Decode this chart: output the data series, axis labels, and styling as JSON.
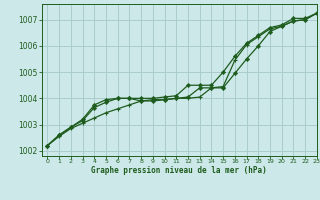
{
  "title": "Graphe pression niveau de la mer (hPa)",
  "bg_color": "#cce8e8",
  "grid_color": "#aacccc",
  "line_color": "#1e5c1e",
  "xlim": [
    -0.5,
    23
  ],
  "ylim": [
    1001.8,
    1007.6
  ],
  "yticks": [
    1002,
    1003,
    1004,
    1005,
    1006,
    1007
  ],
  "xticks": [
    0,
    1,
    2,
    3,
    4,
    5,
    6,
    7,
    8,
    9,
    10,
    11,
    12,
    13,
    14,
    15,
    16,
    17,
    18,
    19,
    20,
    21,
    22,
    23
  ],
  "line1_x": [
    0,
    1,
    2,
    3,
    4,
    5,
    6,
    7,
    8,
    9,
    10,
    11,
    12,
    13,
    14,
    15,
    16,
    17,
    18,
    19,
    20,
    21,
    22,
    23
  ],
  "line1_y": [
    1002.2,
    1002.6,
    1002.9,
    1003.15,
    1003.65,
    1003.85,
    1004.0,
    1004.0,
    1004.0,
    1004.0,
    1004.05,
    1004.1,
    1004.5,
    1004.5,
    1004.5,
    1005.0,
    1005.6,
    1006.1,
    1006.4,
    1006.7,
    1006.8,
    1007.05,
    1007.05,
    1007.25
  ],
  "line2_x": [
    0,
    1,
    2,
    3,
    4,
    5,
    6,
    7,
    8,
    9,
    10,
    11,
    12,
    13,
    14,
    15,
    16,
    17,
    18,
    19,
    20,
    21,
    22,
    23
  ],
  "line2_y": [
    1002.2,
    1002.6,
    1002.9,
    1003.2,
    1003.75,
    1003.95,
    1004.0,
    1004.0,
    1003.9,
    1003.9,
    1003.95,
    1004.0,
    1004.05,
    1004.4,
    1004.4,
    1004.4,
    1004.95,
    1005.5,
    1006.0,
    1006.55,
    1006.75,
    1006.95,
    1007.0,
    1007.25
  ],
  "line3_x": [
    0,
    1,
    2,
    3,
    4,
    5,
    6,
    7,
    8,
    9,
    10,
    11,
    12,
    13,
    14,
    15,
    16,
    17,
    18,
    19,
    20,
    21,
    22,
    23
  ],
  "line3_y": [
    1002.2,
    1002.55,
    1002.85,
    1003.05,
    1003.25,
    1003.45,
    1003.6,
    1003.75,
    1003.9,
    1003.95,
    1003.95,
    1004.0,
    1004.0,
    1004.05,
    1004.4,
    1004.45,
    1005.45,
    1006.05,
    1006.35,
    1006.65,
    1006.75,
    1006.95,
    1007.0,
    1007.25
  ]
}
